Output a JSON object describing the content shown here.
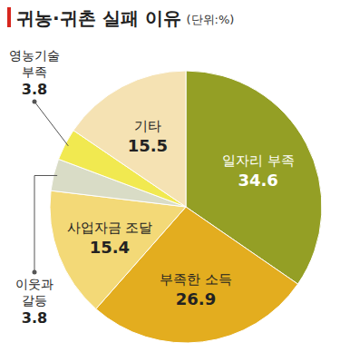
{
  "chart_data": {
    "type": "pie",
    "title": "귀농·귀촌 실패 이유",
    "subtitle": "(단위:%)",
    "categories": [
      "일자리 부족",
      "부족한 소득",
      "사업자금 조달",
      "이웃과 갈등",
      "영농기술 부족",
      "기타"
    ],
    "values": [
      34.6,
      26.9,
      15.4,
      3.8,
      3.8,
      15.5
    ],
    "colors": [
      "#949f25",
      "#e3ad1f",
      "#f3d977",
      "#d9dcc6",
      "#f1e950",
      "#f5e2b3"
    ],
    "data_labels": true
  }
}
